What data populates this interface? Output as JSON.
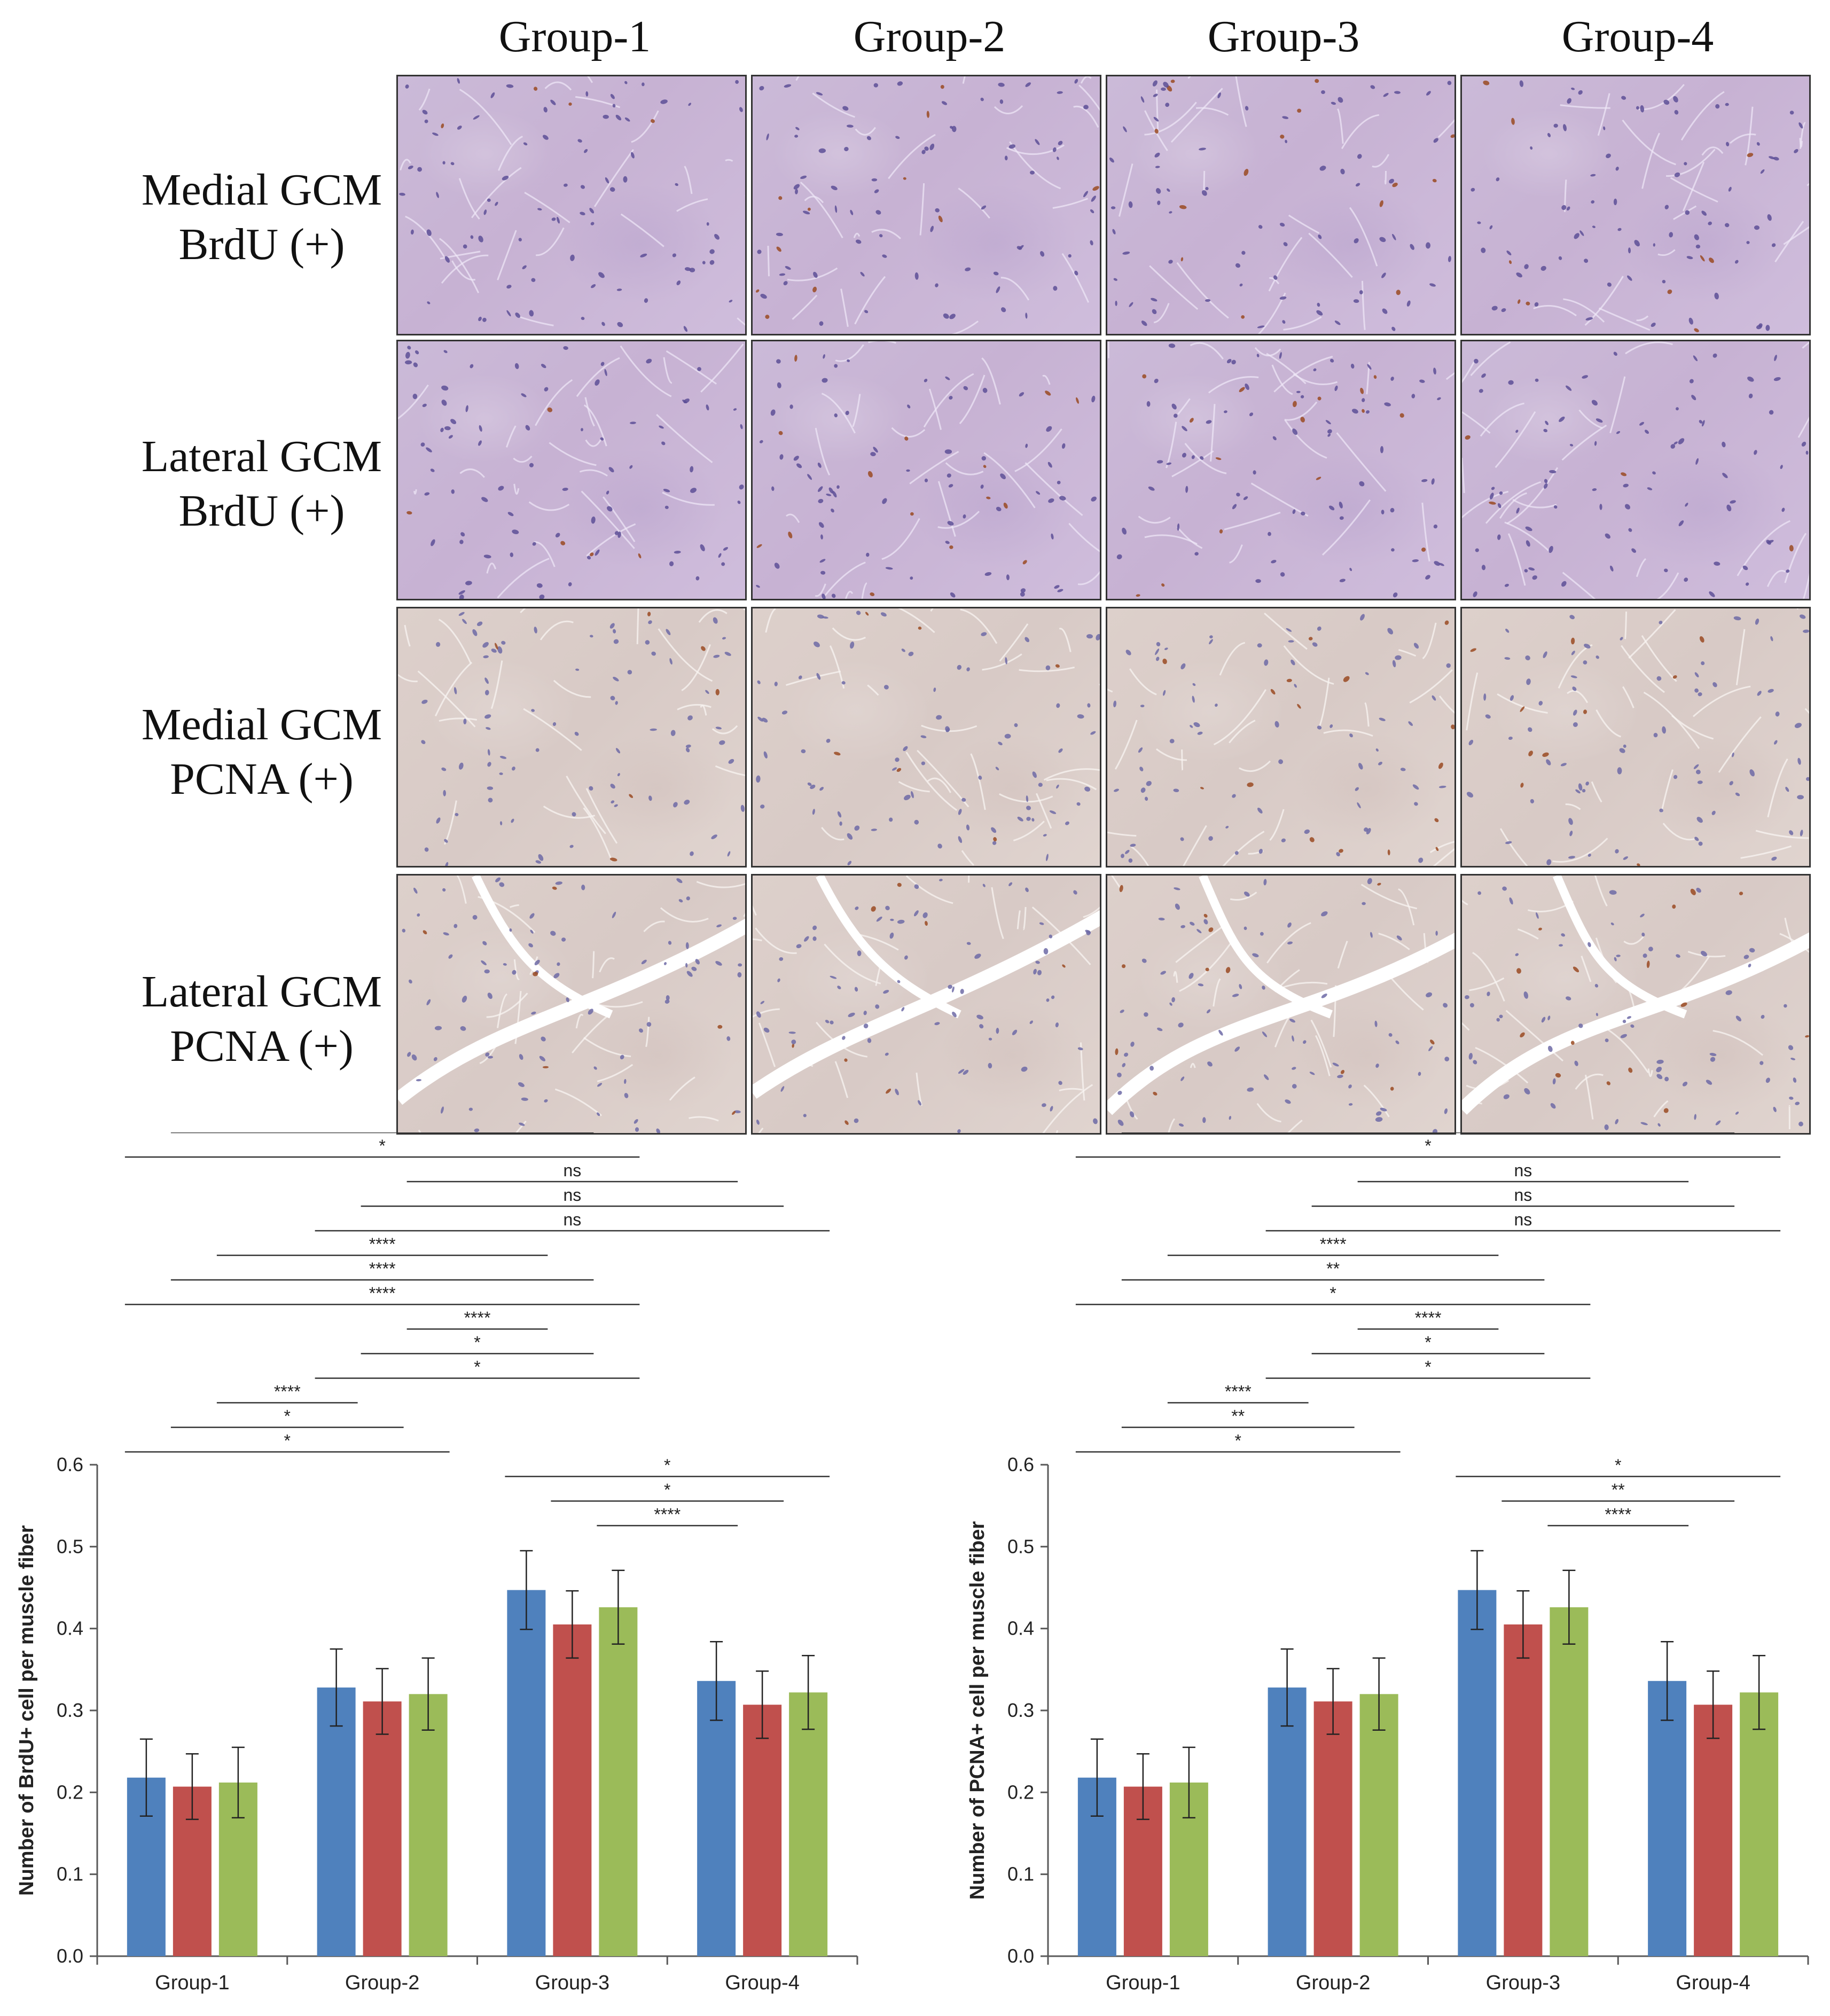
{
  "columns": [
    "Group-1",
    "Group-2",
    "Group-3",
    "Group-4"
  ],
  "rows": [
    "Medial GCM\nBrdU (+)",
    "Lateral GCM\nBrdU (+)",
    "Medial GCM\nPCNA (+)",
    "Lateral GCM\nPCNA (+)"
  ],
  "colors": {
    "series1": "#4f81bd",
    "series2": "#c0504d",
    "series3": "#9bbb59",
    "brdu_tissue": "#c9b6d6",
    "pcna_tissue": "#dbcec9"
  },
  "chart_data": [
    {
      "type": "bar",
      "ylabel": "Number of BrdU+ cell per muscle fiber",
      "xlabel": "",
      "categories": [
        "Group-1",
        "Group-2",
        "Group-3",
        "Group-4"
      ],
      "ylim": [
        0,
        0.6
      ],
      "yticks": [
        "0.0",
        "0.1",
        "0.2",
        "0.3",
        "0.4",
        "0.5",
        "0.6"
      ],
      "series": [
        {
          "values": [
            0.218,
            0.328,
            0.447,
            0.336
          ],
          "errors": [
            0.047,
            0.047,
            0.048,
            0.048
          ]
        },
        {
          "values": [
            0.207,
            0.311,
            0.405,
            0.307
          ],
          "errors": [
            0.04,
            0.04,
            0.041,
            0.041
          ]
        },
        {
          "values": [
            0.212,
            0.32,
            0.426,
            0.322
          ],
          "errors": [
            0.043,
            0.044,
            0.045,
            0.045
          ]
        }
      ],
      "annotations": [
        {
          "label": "****",
          "from": [
            0,
            2
          ],
          "to": [
            2,
            0
          ]
        },
        {
          "label": "*",
          "from": [
            0,
            1
          ],
          "to": [
            2,
            1
          ]
        },
        {
          "label": "*",
          "from": [
            0,
            0
          ],
          "to": [
            2,
            2
          ]
        },
        {
          "label": "ns",
          "from": [
            1,
            2
          ],
          "to": [
            3,
            0
          ]
        },
        {
          "label": "ns",
          "from": [
            1,
            1
          ],
          "to": [
            3,
            1
          ]
        },
        {
          "label": "ns",
          "from": [
            1,
            0
          ],
          "to": [
            3,
            2
          ]
        },
        {
          "label": "****",
          "from": [
            0,
            2
          ],
          "to": [
            2,
            0
          ]
        },
        {
          "label": "****",
          "from": [
            0,
            1
          ],
          "to": [
            2,
            1
          ]
        },
        {
          "label": "****",
          "from": [
            0,
            0
          ],
          "to": [
            2,
            2
          ]
        },
        {
          "label": "****",
          "from": [
            1,
            2
          ],
          "to": [
            2,
            0
          ]
        },
        {
          "label": "*",
          "from": [
            1,
            1
          ],
          "to": [
            2,
            1
          ]
        },
        {
          "label": "*",
          "from": [
            1,
            0
          ],
          "to": [
            2,
            2
          ]
        },
        {
          "label": "****",
          "from": [
            0,
            2
          ],
          "to": [
            1,
            0
          ]
        },
        {
          "label": "*",
          "from": [
            0,
            1
          ],
          "to": [
            1,
            1
          ]
        },
        {
          "label": "*",
          "from": [
            0,
            0
          ],
          "to": [
            1,
            2
          ]
        },
        {
          "label": "*",
          "from": [
            2,
            0
          ],
          "to": [
            3,
            2
          ]
        },
        {
          "label": "*",
          "from": [
            2,
            1
          ],
          "to": [
            3,
            1
          ]
        },
        {
          "label": "****",
          "from": [
            2,
            2
          ],
          "to": [
            3,
            0
          ]
        }
      ]
    },
    {
      "type": "bar",
      "ylabel": "Number of PCNA+ cell per muscle fiber",
      "xlabel": "",
      "categories": [
        "Group-1",
        "Group-2",
        "Group-3",
        "Group-4"
      ],
      "ylim": [
        0,
        0.6
      ],
      "yticks": [
        "0.0",
        "0.1",
        "0.2",
        "0.3",
        "0.4",
        "0.5",
        "0.6"
      ],
      "series": [
        {
          "values": [
            0.218,
            0.328,
            0.447,
            0.336
          ],
          "errors": [
            0.047,
            0.047,
            0.048,
            0.048
          ]
        },
        {
          "values": [
            0.207,
            0.311,
            0.405,
            0.307
          ],
          "errors": [
            0.04,
            0.04,
            0.041,
            0.041
          ]
        },
        {
          "values": [
            0.212,
            0.32,
            0.426,
            0.322
          ],
          "errors": [
            0.043,
            0.044,
            0.045,
            0.045
          ]
        }
      ],
      "annotations": [
        {
          "label": "****",
          "from": [
            0,
            2
          ],
          "to": [
            3,
            0
          ]
        },
        {
          "label": "**",
          "from": [
            0,
            1
          ],
          "to": [
            3,
            1
          ]
        },
        {
          "label": "*",
          "from": [
            0,
            0
          ],
          "to": [
            3,
            2
          ]
        },
        {
          "label": "ns",
          "from": [
            1,
            2
          ],
          "to": [
            3,
            0
          ]
        },
        {
          "label": "ns",
          "from": [
            1,
            1
          ],
          "to": [
            3,
            1
          ]
        },
        {
          "label": "ns",
          "from": [
            1,
            0
          ],
          "to": [
            3,
            2
          ]
        },
        {
          "label": "****",
          "from": [
            0,
            2
          ],
          "to": [
            2,
            0
          ]
        },
        {
          "label": "**",
          "from": [
            0,
            1
          ],
          "to": [
            2,
            1
          ]
        },
        {
          "label": "*",
          "from": [
            0,
            0
          ],
          "to": [
            2,
            2
          ]
        },
        {
          "label": "****",
          "from": [
            1,
            2
          ],
          "to": [
            2,
            0
          ]
        },
        {
          "label": "*",
          "from": [
            1,
            1
          ],
          "to": [
            2,
            1
          ]
        },
        {
          "label": "*",
          "from": [
            1,
            0
          ],
          "to": [
            2,
            2
          ]
        },
        {
          "label": "****",
          "from": [
            0,
            2
          ],
          "to": [
            1,
            0
          ]
        },
        {
          "label": "**",
          "from": [
            0,
            1
          ],
          "to": [
            1,
            1
          ]
        },
        {
          "label": "*",
          "from": [
            0,
            0
          ],
          "to": [
            1,
            2
          ]
        },
        {
          "label": "*",
          "from": [
            2,
            0
          ],
          "to": [
            3,
            2
          ]
        },
        {
          "label": "**",
          "from": [
            2,
            1
          ],
          "to": [
            3,
            1
          ]
        },
        {
          "label": "****",
          "from": [
            2,
            2
          ],
          "to": [
            3,
            0
          ]
        }
      ]
    }
  ]
}
